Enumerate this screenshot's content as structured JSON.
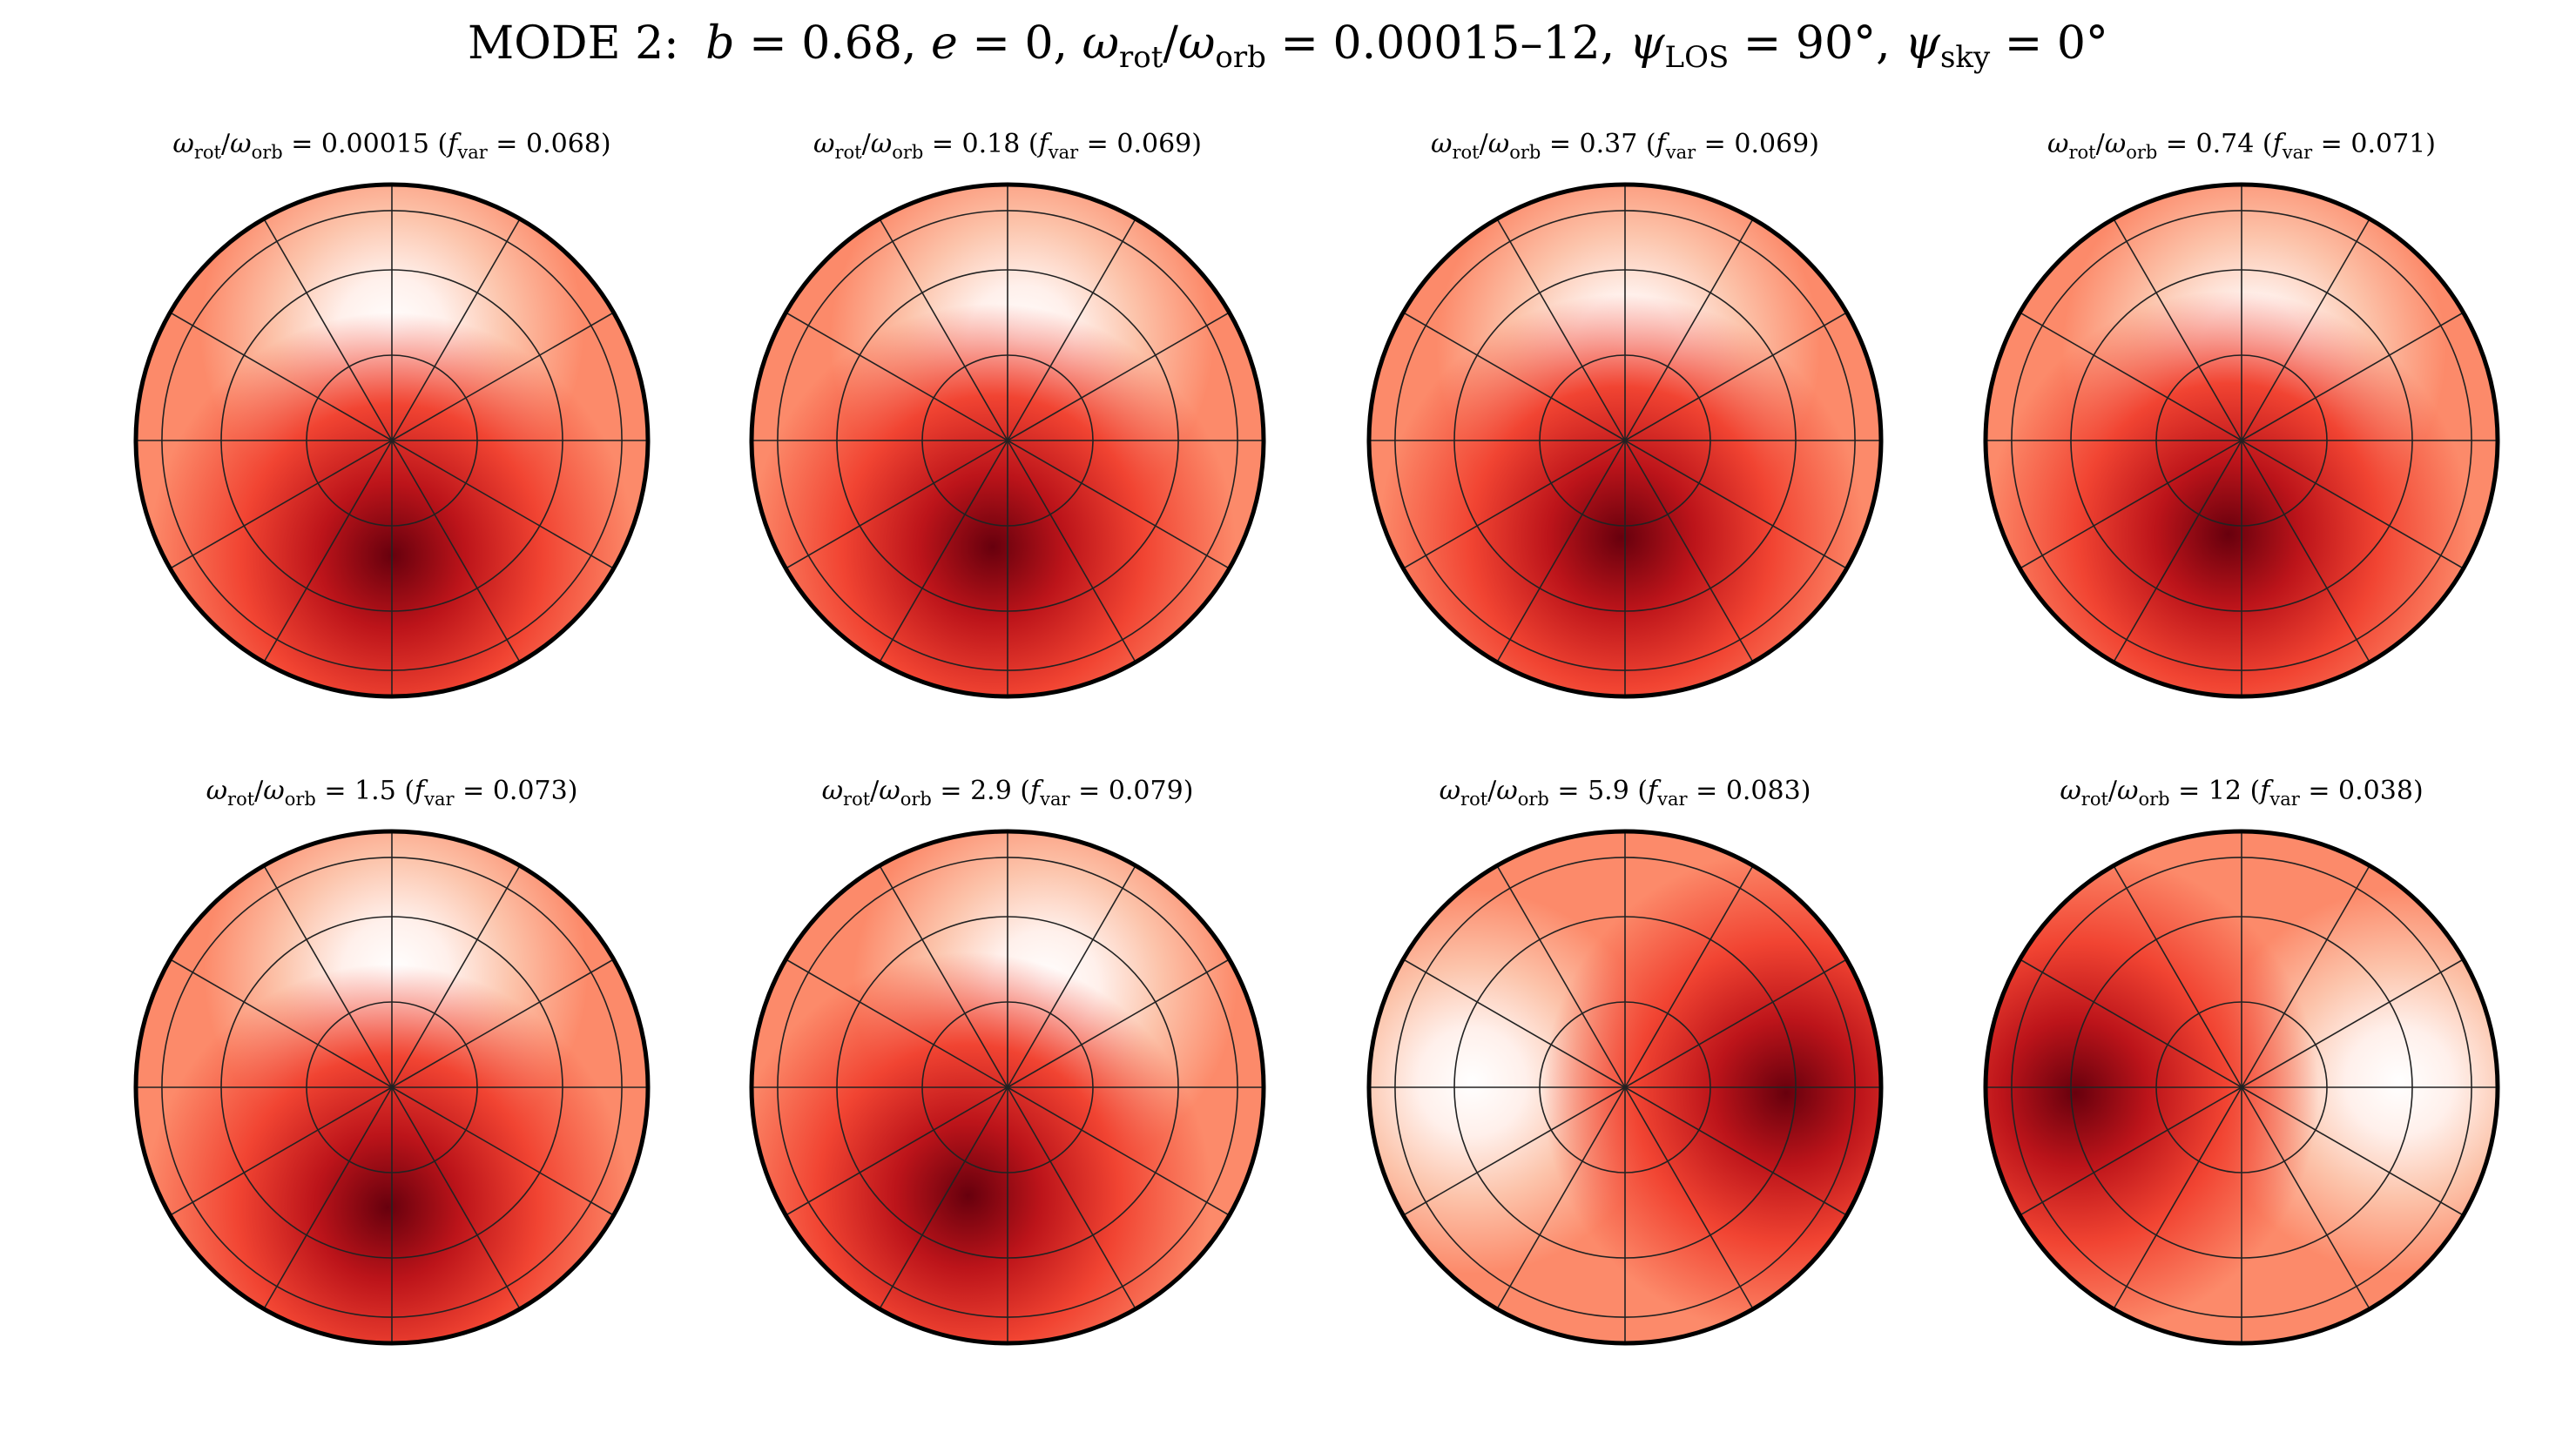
{
  "title": {
    "prefix": "MODE 2:",
    "b": "0.68",
    "e": "0",
    "rot_range": "0.00015–12",
    "psi_los": "90°",
    "psi_sky": "0°"
  },
  "labels": {
    "omega": "ω",
    "rot_sub": "rot",
    "orb_sub": "orb",
    "f": "f",
    "var_sub": "var",
    "psi": "ψ",
    "los_sub": "LOS",
    "sky_sub": "sky"
  },
  "colormap": [
    "#ffffff",
    "#fff0eb",
    "#fcc4ab",
    "#fc8a6a",
    "#f14432",
    "#bc141a",
    "#67000d"
  ],
  "panels": [
    {
      "ratio": "0.00015",
      "fvar": "0.068",
      "hot_theta_deg": 270,
      "hot_r": 0.45
    },
    {
      "ratio": "0.18",
      "fvar": "0.069",
      "hot_theta_deg": 262,
      "hot_r": 0.42
    },
    {
      "ratio": "0.37",
      "fvar": "0.069",
      "hot_theta_deg": 268,
      "hot_r": 0.38
    },
    {
      "ratio": "0.74",
      "fvar": "0.071",
      "hot_theta_deg": 262,
      "hot_r": 0.37
    },
    {
      "ratio": "1.5",
      "fvar": "0.073",
      "hot_theta_deg": 268,
      "hot_r": 0.47
    },
    {
      "ratio": "2.9",
      "fvar": "0.079",
      "hot_theta_deg": 250,
      "hot_r": 0.45
    },
    {
      "ratio": "5.9",
      "fvar": "0.083",
      "hot_theta_deg": 358,
      "hot_r": 0.63
    },
    {
      "ratio": "12",
      "fvar": "0.038",
      "hot_theta_deg": 182,
      "hot_r": 0.65
    }
  ]
}
